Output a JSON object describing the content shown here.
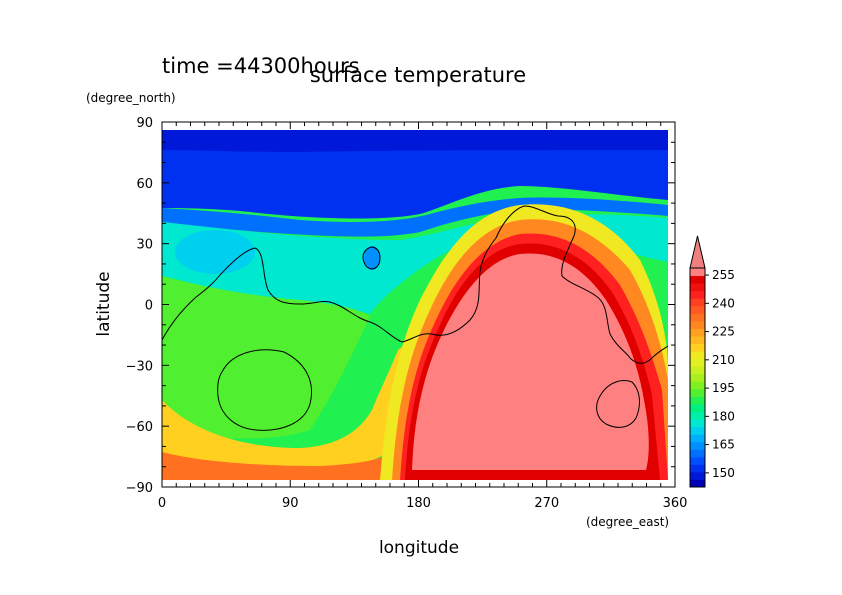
{
  "chart_data": {
    "type": "heatmap",
    "time_label": "time =44300hours",
    "title": "surface temperature",
    "xlabel": "longitude",
    "ylabel": "latitude",
    "x_units": "(degree_east)",
    "y_units": "(degree_north)",
    "xlim": [
      0,
      360
    ],
    "ylim": [
      -90,
      90
    ],
    "x_ticks": [
      "0",
      "90",
      "180",
      "270",
      "360"
    ],
    "y_ticks": [
      "90",
      "60",
      "30",
      "0",
      "−30",
      "−60",
      "−90"
    ],
    "colorbar": {
      "labels": [
        "150",
        "165",
        "180",
        "195",
        "210",
        "225",
        "240",
        "255"
      ],
      "levels": [
        142.5,
        146.25,
        150,
        153.75,
        157.5,
        161.25,
        165,
        168.75,
        172.5,
        176.25,
        180,
        183.75,
        187.5,
        191.25,
        195,
        198.75,
        202.5,
        206.25,
        210,
        213.75,
        217.5,
        221.25,
        225,
        228.75,
        232.5,
        236.25,
        240,
        243.75,
        247.5,
        251.25,
        255,
        258.75
      ],
      "colors": [
        "#0000b4",
        "#0018d8",
        "#0030f0",
        "#0050ff",
        "#0070ff",
        "#0090ff",
        "#00b0ff",
        "#00d0f0",
        "#00e8d0",
        "#00f0a8",
        "#00f080",
        "#20f050",
        "#50f030",
        "#80f020",
        "#a8f020",
        "#c8f020",
        "#e0f020",
        "#f0e820",
        "#ffd020",
        "#ffb820",
        "#ffa020",
        "#ff8820",
        "#ff7020",
        "#ff5820",
        "#ff4020",
        "#ff2020",
        "#f01010",
        "#e00000",
        "#ff8080"
      ],
      "overflow_color": "#f08080"
    },
    "fields": {
      "deep_blue": 146,
      "blue": 160,
      "cyan": 180,
      "green": 196,
      "yellow": 222,
      "orange": 240,
      "red": 250,
      "salmon": 262
    },
    "note": "contour line marks the 0-level outline shown in black"
  }
}
